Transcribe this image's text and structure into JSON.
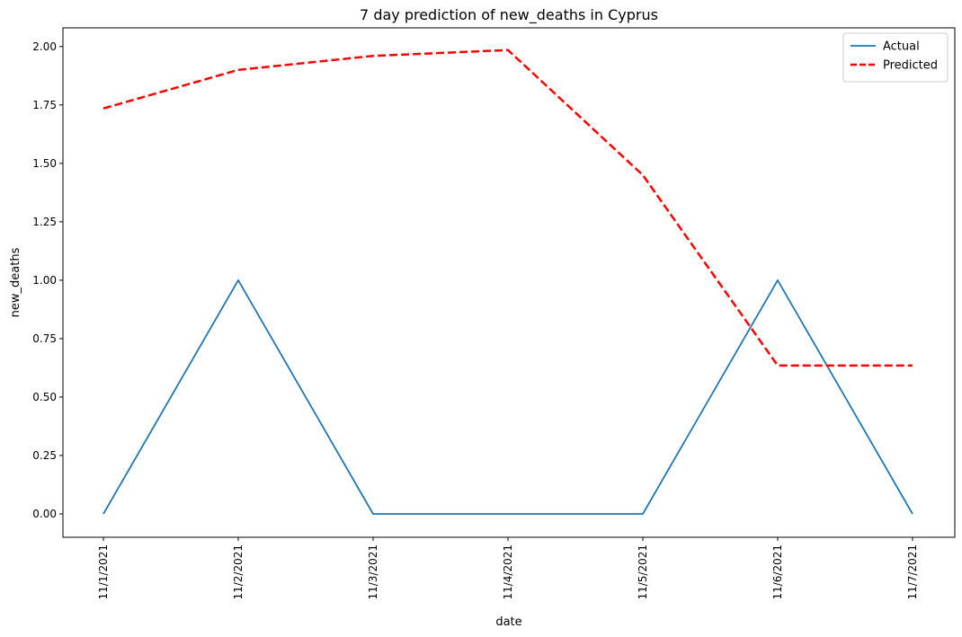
{
  "chart_data": {
    "type": "line",
    "title": "7 day prediction of new_deaths in Cyprus",
    "xlabel": "date",
    "ylabel": "new_deaths",
    "categories": [
      "11/1/2021",
      "11/2/2021",
      "11/3/2021",
      "11/4/2021",
      "11/5/2021",
      "11/6/2021",
      "11/7/2021"
    ],
    "y_ticks": [
      "0.00",
      "0.25",
      "0.50",
      "0.75",
      "1.00",
      "1.25",
      "1.50",
      "1.75",
      "2.00"
    ],
    "ylim": [
      -0.1,
      2.08
    ],
    "grid": false,
    "legend_position": "top-right",
    "series": [
      {
        "name": "Actual",
        "values": [
          0,
          1,
          0,
          0,
          0,
          1,
          0
        ],
        "color": "#1f77b4",
        "style": "solid"
      },
      {
        "name": "Predicted",
        "values": [
          1.735,
          1.9,
          1.96,
          1.985,
          1.45,
          0.635,
          0.635
        ],
        "color": "#ff0000",
        "style": "dashed"
      }
    ]
  }
}
